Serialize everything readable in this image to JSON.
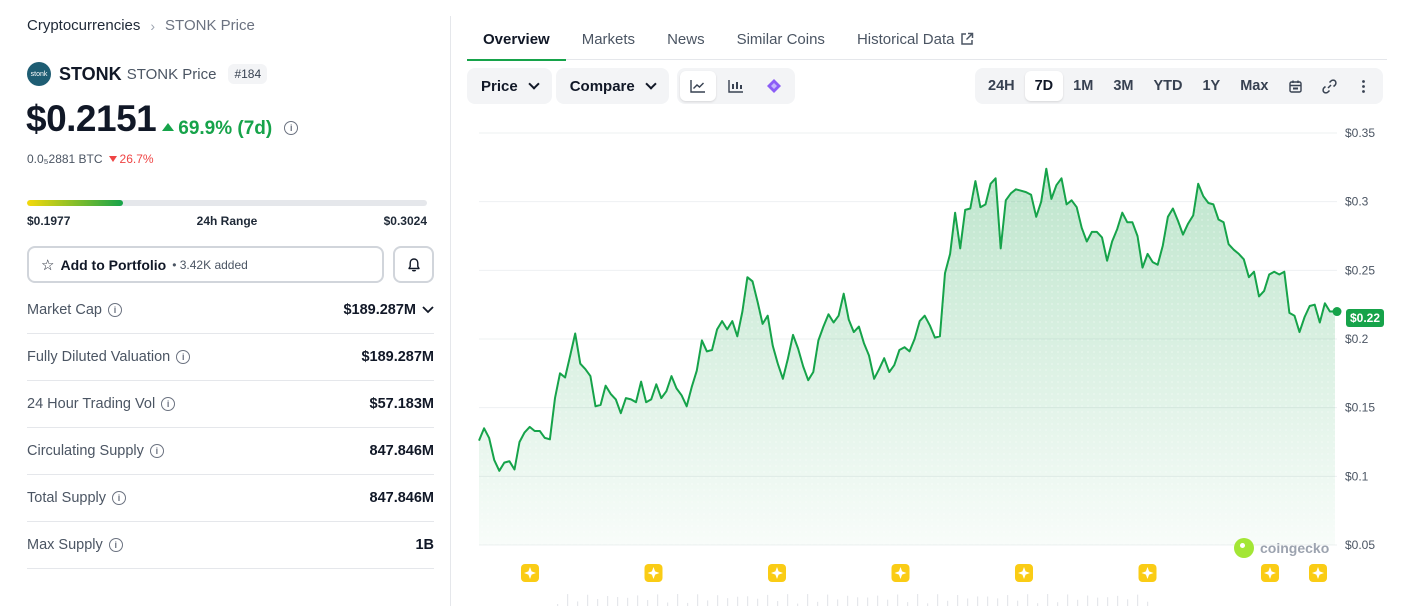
{
  "breadcrumb": {
    "root": "Cryptocurrencies",
    "separator": "›",
    "current": "STONK Price"
  },
  "coin": {
    "logo_text": "stonk",
    "symbol": "STONK",
    "subtitle": "STONK Price",
    "rank": "#184",
    "price": "$0.2151",
    "change_7d": "69.9% (7d)",
    "btc_price": "0.0₅2881 BTC",
    "btc_change": "26.7%"
  },
  "range24h": {
    "low": "$0.1977",
    "label": "24h Range",
    "high": "$0.3024",
    "fill_fraction": 0.24
  },
  "portfolio": {
    "label": "Add to Portfolio",
    "added": "• 3.42K added"
  },
  "stats": [
    {
      "label": "Market Cap",
      "value": "$189.287M",
      "has_chevron": true
    },
    {
      "label": "Fully Diluted Valuation",
      "value": "$189.287M"
    },
    {
      "label": "24 Hour Trading Vol",
      "value": "$57.183M"
    },
    {
      "label": "Circulating Supply",
      "value": "847.846M"
    },
    {
      "label": "Total Supply",
      "value": "847.846M"
    },
    {
      "label": "Max Supply",
      "value": "1B"
    }
  ],
  "tabs": [
    {
      "label": "Overview",
      "active": true
    },
    {
      "label": "Markets"
    },
    {
      "label": "News"
    },
    {
      "label": "Similar Coins"
    },
    {
      "label": "Historical Data",
      "external": true
    }
  ],
  "toolbar": {
    "price_label": "Price",
    "compare_label": "Compare"
  },
  "ranges": [
    {
      "label": "24H"
    },
    {
      "label": "7D",
      "active": true
    },
    {
      "label": "1M"
    },
    {
      "label": "3M"
    },
    {
      "label": "YTD"
    },
    {
      "label": "1Y"
    },
    {
      "label": "Max"
    }
  ],
  "watermark": "coingecko",
  "colors": {
    "accent": "#16a34a",
    "negative": "#ef4444",
    "marker": "#facc15"
  },
  "chart_data": {
    "type": "area",
    "ylim": [
      0.05,
      0.35
    ],
    "yticks": [
      {
        "v": 0.35,
        "label": "$0.35"
      },
      {
        "v": 0.3,
        "label": "$0.3"
      },
      {
        "v": 0.25,
        "label": "$0.25"
      },
      {
        "v": 0.2,
        "label": "$0.2"
      },
      {
        "v": 0.15,
        "label": "$0.15"
      },
      {
        "v": 0.1,
        "label": "$0.1"
      },
      {
        "v": 0.05,
        "label": "$0.05"
      }
    ],
    "current_label": "$0.22",
    "current_value": 0.22,
    "grid": true,
    "values": [
      0.126,
      0.135,
      0.128,
      0.112,
      0.104,
      0.11,
      0.111,
      0.105,
      0.125,
      0.132,
      0.136,
      0.133,
      0.133,
      0.128,
      0.127,
      0.157,
      0.175,
      0.172,
      0.188,
      0.204,
      0.182,
      0.178,
      0.173,
      0.151,
      0.152,
      0.166,
      0.16,
      0.156,
      0.146,
      0.157,
      0.156,
      0.154,
      0.169,
      0.154,
      0.156,
      0.167,
      0.157,
      0.162,
      0.173,
      0.164,
      0.159,
      0.151,
      0.165,
      0.177,
      0.199,
      0.191,
      0.192,
      0.207,
      0.213,
      0.207,
      0.213,
      0.202,
      0.22,
      0.245,
      0.242,
      0.227,
      0.211,
      0.217,
      0.195,
      0.182,
      0.171,
      0.186,
      0.203,
      0.193,
      0.18,
      0.17,
      0.176,
      0.199,
      0.209,
      0.218,
      0.212,
      0.217,
      0.233,
      0.214,
      0.205,
      0.209,
      0.197,
      0.188,
      0.171,
      0.178,
      0.186,
      0.176,
      0.181,
      0.192,
      0.194,
      0.191,
      0.2,
      0.213,
      0.217,
      0.21,
      0.201,
      0.202,
      0.248,
      0.262,
      0.292,
      0.266,
      0.294,
      0.295,
      0.315,
      0.296,
      0.298,
      0.313,
      0.317,
      0.266,
      0.301,
      0.306,
      0.309,
      0.308,
      0.307,
      0.305,
      0.289,
      0.3,
      0.324,
      0.302,
      0.312,
      0.317,
      0.298,
      0.301,
      0.296,
      0.281,
      0.271,
      0.278,
      0.278,
      0.274,
      0.257,
      0.271,
      0.28,
      0.292,
      0.285,
      0.285,
      0.275,
      0.252,
      0.262,
      0.256,
      0.254,
      0.268,
      0.289,
      0.295,
      0.286,
      0.276,
      0.284,
      0.29,
      0.313,
      0.304,
      0.299,
      0.298,
      0.287,
      0.285,
      0.269,
      0.265,
      0.262,
      0.258,
      0.245,
      0.249,
      0.231,
      0.235,
      0.247,
      0.249,
      0.247,
      0.249,
      0.219,
      0.217,
      0.205,
      0.216,
      0.224,
      0.225,
      0.212,
      0.226,
      0.22,
      0.22
    ],
    "markers": 8
  }
}
